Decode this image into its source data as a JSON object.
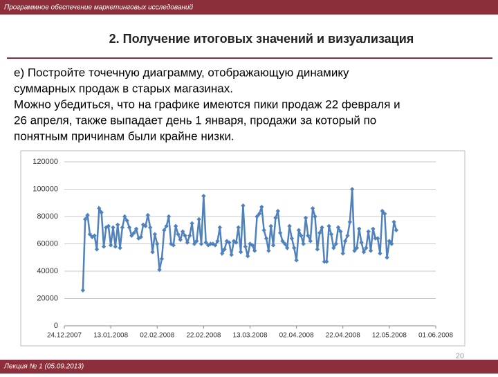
{
  "header": {
    "text": "Программное обеспечение маркетинговых исследований"
  },
  "slide_title": "2. Получение итоговых значений и визуализация",
  "body": [
    "е) Постройте точечную диаграмму, отображающую динамику",
    "суммарных продаж в старых магазинах.",
    "Можно убедиться, что на графике имеются пики продаж 22 февраля и",
    "26 апреля, также выпадает день 1 января, продажи за который по",
    "понятным причинам были крайне низки."
  ],
  "footer": {
    "text": "Лекция № 1 (05.09.2013)",
    "page": "20"
  },
  "chart_data": {
    "type": "line",
    "color": "#4f81bd",
    "grid": true,
    "xlim": [
      "2007-12-24",
      "2008-06-01"
    ],
    "xticks": [
      {
        "value": "2007-12-24",
        "label": "24.12.2007"
      },
      {
        "value": "2008-01-13",
        "label": "13.01.2008"
      },
      {
        "value": "2008-02-02",
        "label": "02.02.2008"
      },
      {
        "value": "2008-02-22",
        "label": "22.02.2008"
      },
      {
        "value": "2008-03-13",
        "label": "13.03.2008"
      },
      {
        "value": "2008-04-02",
        "label": "02.04.2008"
      },
      {
        "value": "2008-04-22",
        "label": "22.04.2008"
      },
      {
        "value": "2008-05-12",
        "label": "12.05.2008"
      },
      {
        "value": "2008-06-01",
        "label": "01.06.2008"
      }
    ],
    "ylim": [
      0,
      120000
    ],
    "yticks": [
      0,
      20000,
      40000,
      60000,
      80000,
      100000,
      120000
    ],
    "x": [
      "2008-01-01",
      "2008-01-02",
      "2008-01-03",
      "2008-01-04",
      "2008-01-05",
      "2008-01-06",
      "2008-01-07",
      "2008-01-08",
      "2008-01-09",
      "2008-01-10",
      "2008-01-11",
      "2008-01-12",
      "2008-01-13",
      "2008-01-14",
      "2008-01-15",
      "2008-01-16",
      "2008-01-17",
      "2008-01-18",
      "2008-01-19",
      "2008-01-20",
      "2008-01-21",
      "2008-01-22",
      "2008-01-23",
      "2008-01-24",
      "2008-01-25",
      "2008-01-26",
      "2008-01-27",
      "2008-01-28",
      "2008-01-29",
      "2008-01-30",
      "2008-01-31",
      "2008-02-01",
      "2008-02-02",
      "2008-02-03",
      "2008-02-04",
      "2008-02-05",
      "2008-02-06",
      "2008-02-07",
      "2008-02-08",
      "2008-02-09",
      "2008-02-10",
      "2008-02-11",
      "2008-02-12",
      "2008-02-13",
      "2008-02-14",
      "2008-02-15",
      "2008-02-16",
      "2008-02-17",
      "2008-02-18",
      "2008-02-19",
      "2008-02-20",
      "2008-02-21",
      "2008-02-22",
      "2008-02-23",
      "2008-02-24",
      "2008-02-25",
      "2008-02-26",
      "2008-02-27",
      "2008-02-28",
      "2008-02-29",
      "2008-03-01",
      "2008-03-02",
      "2008-03-03",
      "2008-03-04",
      "2008-03-05",
      "2008-03-06",
      "2008-03-07",
      "2008-03-08",
      "2008-03-09",
      "2008-03-10",
      "2008-03-11",
      "2008-03-12",
      "2008-03-13",
      "2008-03-14",
      "2008-03-15",
      "2008-03-16",
      "2008-03-17",
      "2008-03-18",
      "2008-03-19",
      "2008-03-20",
      "2008-03-21",
      "2008-03-22",
      "2008-03-23",
      "2008-03-24",
      "2008-03-25",
      "2008-03-26",
      "2008-03-27",
      "2008-03-28",
      "2008-03-29",
      "2008-03-30",
      "2008-03-31",
      "2008-04-01",
      "2008-04-02",
      "2008-04-03",
      "2008-04-04",
      "2008-04-05",
      "2008-04-06",
      "2008-04-07",
      "2008-04-08",
      "2008-04-09",
      "2008-04-10",
      "2008-04-11",
      "2008-04-12",
      "2008-04-13",
      "2008-04-14",
      "2008-04-15",
      "2008-04-16",
      "2008-04-17",
      "2008-04-18",
      "2008-04-19",
      "2008-04-20",
      "2008-04-21",
      "2008-04-22",
      "2008-04-23",
      "2008-04-24",
      "2008-04-25",
      "2008-04-26",
      "2008-04-27",
      "2008-04-28",
      "2008-04-29",
      "2008-04-30",
      "2008-05-01",
      "2008-05-02",
      "2008-05-03",
      "2008-05-04",
      "2008-05-05",
      "2008-05-06",
      "2008-05-07",
      "2008-05-08",
      "2008-05-09",
      "2008-05-10",
      "2008-05-11",
      "2008-05-12",
      "2008-05-13",
      "2008-05-14",
      "2008-05-15"
    ],
    "values": [
      26000,
      78000,
      81000,
      67000,
      65000,
      66000,
      56000,
      86000,
      83000,
      58000,
      72000,
      73000,
      59000,
      72000,
      58000,
      74000,
      57000,
      72000,
      80000,
      77000,
      72000,
      66000,
      68000,
      71000,
      64000,
      65000,
      74000,
      73000,
      81000,
      72000,
      54000,
      67000,
      60000,
      41000,
      49000,
      70000,
      73000,
      80000,
      60000,
      59000,
      73000,
      67000,
      63000,
      69000,
      66000,
      61000,
      66000,
      75000,
      60000,
      62000,
      78000,
      60000,
      95000,
      61000,
      59000,
      60000,
      60000,
      59000,
      62000,
      72000,
      53000,
      56000,
      62000,
      61000,
      52000,
      62000,
      61000,
      72000,
      54000,
      88000,
      58000,
      51000,
      60000,
      59000,
      55000,
      80000,
      82000,
      87000,
      70000,
      64000,
      55000,
      73000,
      59000,
      79000,
      84000,
      68000,
      62000,
      60000,
      57000,
      73000,
      64000,
      57000,
      48000,
      70000,
      66000,
      60000,
      79000,
      66000,
      62000,
      86000,
      80000,
      56000,
      68000,
      72000,
      47000,
      47000,
      73000,
      67000,
      57000,
      60000,
      72000,
      69000,
      53000,
      62000,
      66000,
      76000,
      100000,
      55000,
      57000,
      71000,
      61000,
      54000,
      57000,
      69000,
      55000,
      71000,
      64000,
      64000,
      53000,
      84000,
      82000,
      50000,
      62000,
      60000,
      76000,
      70000
    ]
  }
}
